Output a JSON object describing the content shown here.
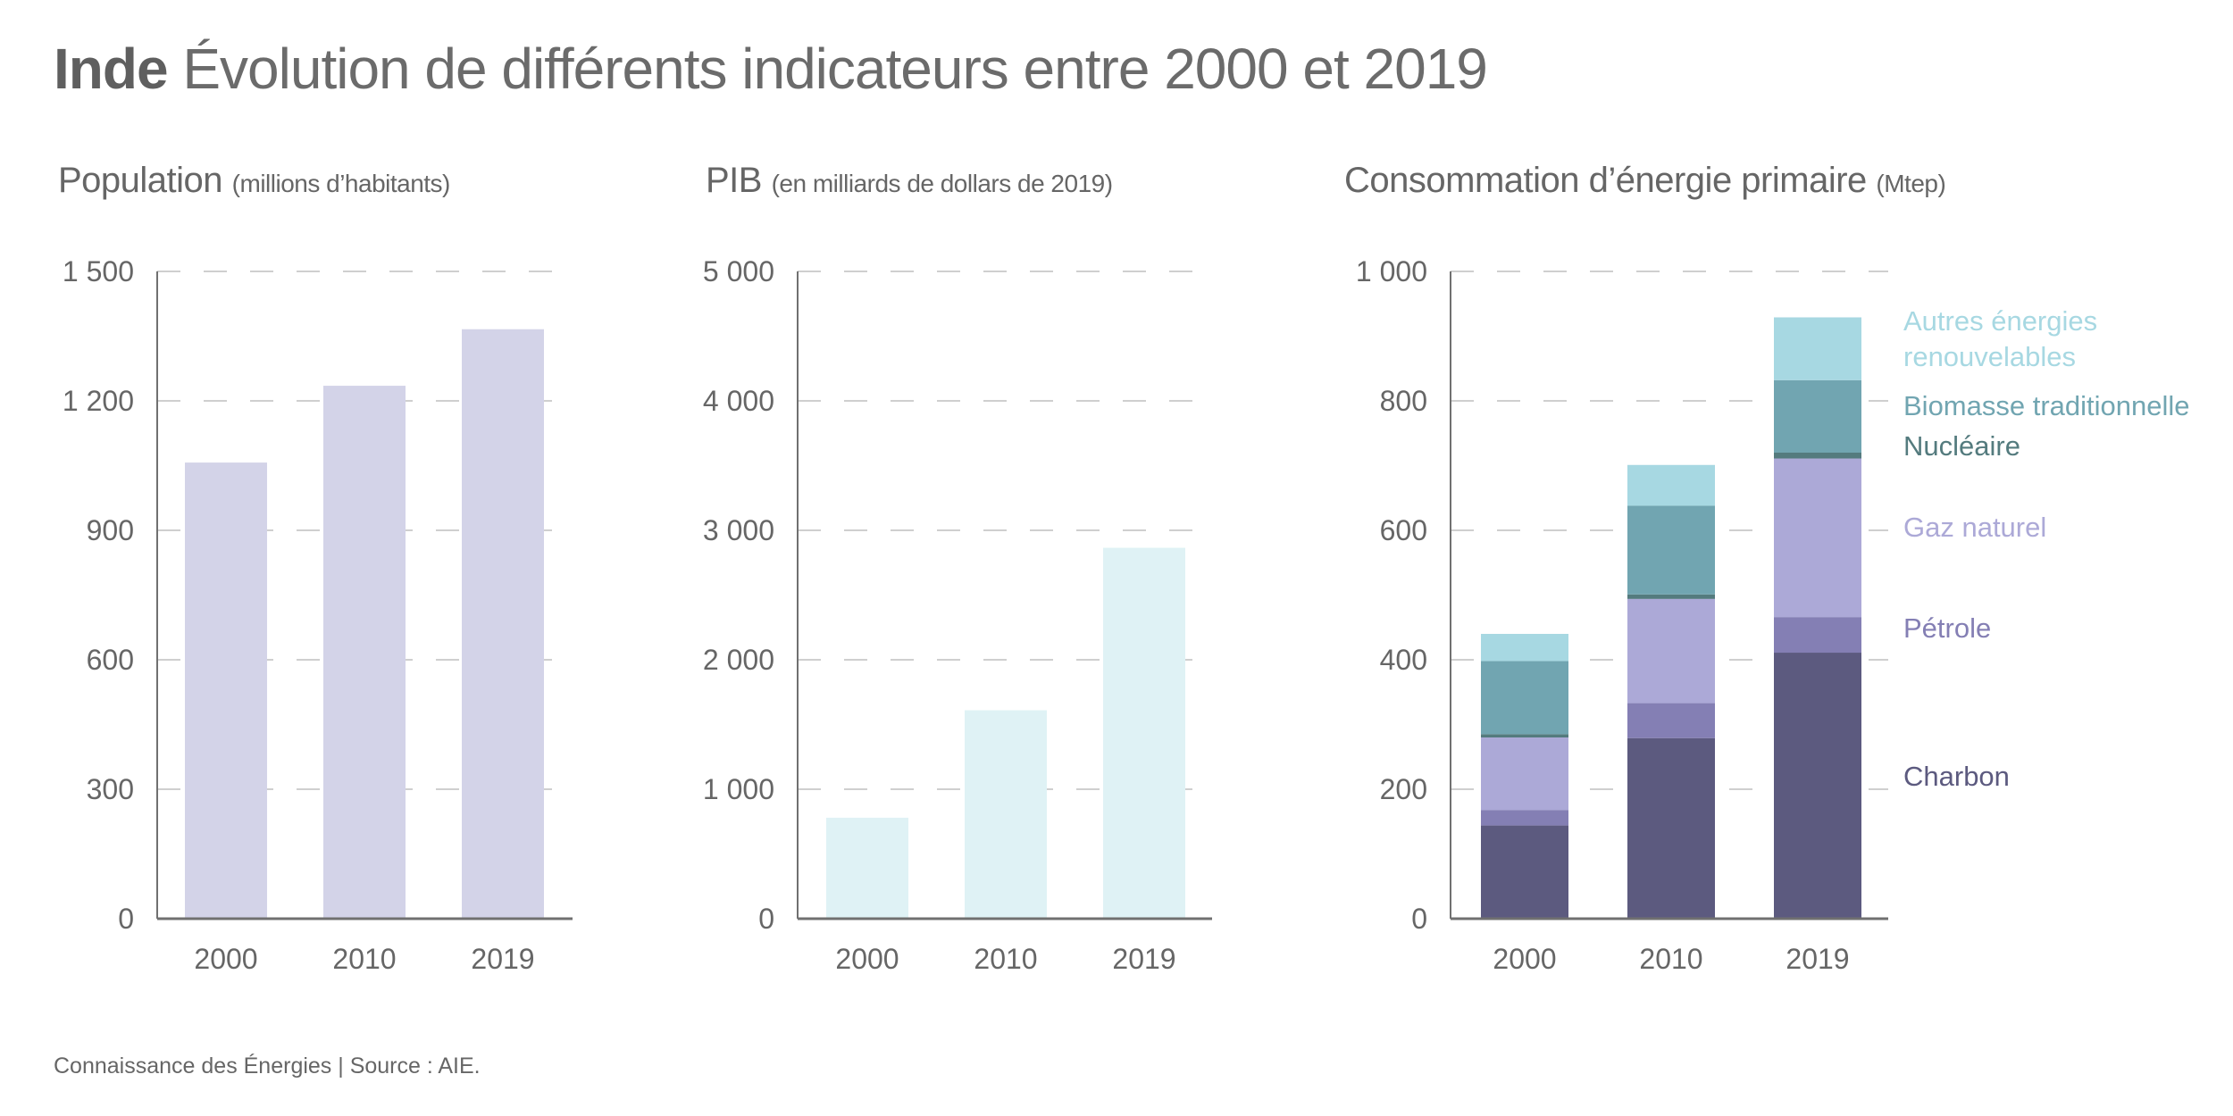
{
  "header": {
    "country": "Inde",
    "title": "Évolution de différents indicateurs entre 2000 et 2019"
  },
  "footer": "Connaissance des Énergies | Source : AIE.",
  "chart_data": [
    {
      "type": "bar",
      "id": "population",
      "title": "Population",
      "unit": "(millions d’habitants)",
      "categories": [
        "2000",
        "2010",
        "2019"
      ],
      "values": [
        1057,
        1235,
        1366
      ],
      "color": "#d3d3e8",
      "ylim": [
        0,
        1500
      ],
      "yticks": [
        0,
        300,
        900,
        1200,
        1500,
        600
      ],
      "ytick_labels": [
        "0",
        "300",
        "900",
        "1 200",
        "1 500",
        "600"
      ],
      "grid": true
    },
    {
      "type": "bar",
      "id": "pib",
      "title": "PIB",
      "unit": "(en milliards de dollars de 2019)",
      "categories": [
        "2000",
        "2010",
        "2019"
      ],
      "values": [
        780,
        1610,
        2865
      ],
      "color": "#dff2f5",
      "ylim": [
        0,
        5000
      ],
      "yticks": [
        0,
        1000,
        2000,
        3000,
        4000,
        5000
      ],
      "ytick_labels": [
        "0",
        "1 000",
        "2 000",
        "3 000",
        "4 000",
        "5 000"
      ],
      "grid": true
    },
    {
      "type": "bar",
      "stacked": true,
      "id": "energie",
      "title": "Consommation d’énergie primaire",
      "unit": "(Mtep)",
      "categories": [
        "2000",
        "2010",
        "2019"
      ],
      "ylim": [
        0,
        1000
      ],
      "yticks": [
        0,
        200,
        400,
        600,
        800,
        1000
      ],
      "ytick_labels": [
        "0",
        "200",
        "400",
        "600",
        "800",
        "1 000"
      ],
      "grid": true,
      "legend_position": "right",
      "series": [
        {
          "name": "Charbon",
          "color": "#5c5a7f",
          "values": [
            144,
            279,
            411
          ]
        },
        {
          "name": "Pétrole",
          "color": "#847fb4",
          "values": [
            24,
            54,
            55
          ]
        },
        {
          "name": "Gaz naturel",
          "color": "#aca9d7",
          "values": [
            112,
            161,
            245
          ]
        },
        {
          "name": "Nucléaire",
          "color": "#547b7e",
          "values": [
            5,
            7,
            9
          ]
        },
        {
          "name": "Biomasse traditionnelle",
          "color": "#71a5b1",
          "values": [
            113,
            137,
            112
          ]
        },
        {
          "name": "Autres énergies renouvelables",
          "color": "#a7d8e2",
          "values": [
            42,
            63,
            97
          ]
        }
      ],
      "legend": [
        {
          "lines": [
            "Autres énergies",
            "renouvelables"
          ],
          "color": "#a7d8e2"
        },
        {
          "lines": [
            "Biomasse traditionnelle"
          ],
          "color": "#71a5b1"
        },
        {
          "lines": [
            "Nucléaire"
          ],
          "color": "#547b7e"
        },
        {
          "lines": [
            "Gaz naturel"
          ],
          "color": "#aca9d7"
        },
        {
          "lines": [
            "Pétrole"
          ],
          "color": "#847fb4"
        },
        {
          "lines": [
            "Charbon"
          ],
          "color": "#5c5a7f"
        }
      ]
    }
  ]
}
